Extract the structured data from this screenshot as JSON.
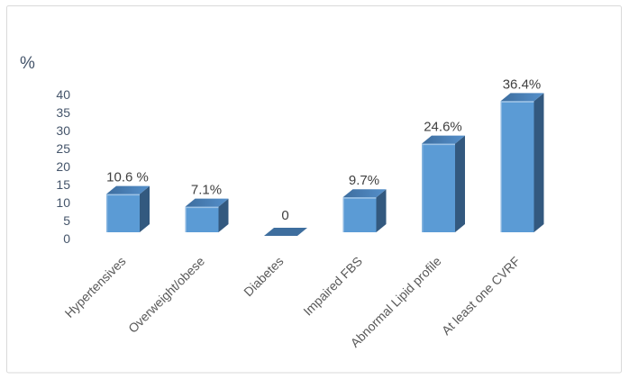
{
  "window": {
    "background": "#FFFFFF",
    "border_color": "#D9D9D9"
  },
  "chart_data": {
    "type": "bar",
    "style": "3d",
    "title": "",
    "xlabel": "",
    "ylabel": "%",
    "categories": [
      "Hypertensives",
      "Overweight/obese",
      "Diabetes",
      "Impaired FBS",
      "Abnormal Lipid profile",
      "At least one CVRF"
    ],
    "values": [
      10.6,
      7.1,
      0,
      9.7,
      24.6,
      36.4
    ],
    "value_labels": [
      "10.6 %",
      "7.1%",
      "0",
      "9.7%",
      "24.6%",
      "36.4%"
    ],
    "yticks": [
      0,
      5,
      10,
      15,
      20,
      25,
      30,
      35,
      40
    ],
    "ylim": [
      0,
      40
    ],
    "grid": false,
    "legend": false,
    "category_label_rotation_deg": -45,
    "colors": {
      "bar_front": "#5B9BD5",
      "bar_top_dark": "#3D6D9E",
      "bar_top_light": "#5590CB",
      "bar_side": "#33597F",
      "zero_marker": "#3E6E9E",
      "bevel_highlight": "#9CC2E5"
    },
    "text_colors": {
      "axis_tick": "#44546A",
      "axis_title": "#44546A",
      "data_label": "#404040",
      "category_label": "#595959"
    }
  }
}
